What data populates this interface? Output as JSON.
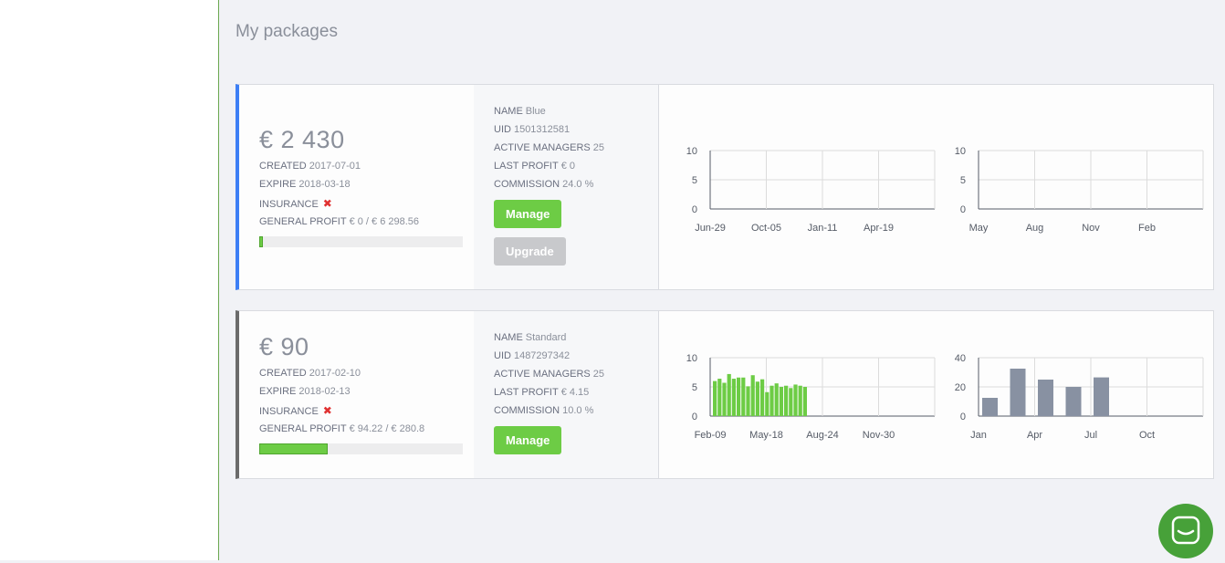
{
  "page": {
    "title": "My packages"
  },
  "colors": {
    "accent_blue": "#3d7ff5",
    "accent_gray": "#6b6b6b",
    "green": "#6dcc45",
    "slate": "#8891a2",
    "danger": "#e03131"
  },
  "packages": [
    {
      "amount": "€ 2 430",
      "created_label": "CREATED",
      "created": "2017-07-01",
      "expire_label": "EXPIRE",
      "expire": "2018-03-18",
      "insurance_label": "INSURANCE",
      "insurance_icon": "cross-icon",
      "profit_label": "GENERAL PROFIT",
      "profit": "€ 0 / € 6 298.56",
      "progress_fraction": 0.005,
      "name_label": "NAME",
      "name": "Blue",
      "uid_label": "UID",
      "uid": "1501312581",
      "managers_label": "ACTIVE MANAGERS",
      "managers": "25",
      "last_profit_label": "LAST PROFIT",
      "last_profit": "€ 0",
      "commission_label": "COMMISSION",
      "commission": "24.0 %",
      "manage_label": "Manage",
      "upgrade_label": "Upgrade"
    },
    {
      "amount": "€ 90",
      "created_label": "CREATED",
      "created": "2017-02-10",
      "expire_label": "EXPIRE",
      "expire": "2018-02-13",
      "insurance_label": "INSURANCE",
      "insurance_icon": "cross-icon",
      "profit_label": "GENERAL PROFIT",
      "profit": "€ 94.22 / € 280.8",
      "progress_fraction": 0.335,
      "name_label": "NAME",
      "name": "Standard",
      "uid_label": "UID",
      "uid": "1487297342",
      "managers_label": "ACTIVE MANAGERS",
      "managers": "25",
      "last_profit_label": "LAST PROFIT",
      "last_profit": "€ 4.15",
      "commission_label": "COMMISSION",
      "commission": "10.0 %",
      "manage_label": "Manage"
    }
  ],
  "chart_data": [
    {
      "type": "bar",
      "x_ticks": [
        "Jun-29",
        "Oct-05",
        "Jan-11",
        "Apr-19"
      ],
      "y_ticks": [
        "0",
        "5",
        "10"
      ],
      "ylim": [
        0,
        10
      ],
      "values": [],
      "grid": true
    },
    {
      "type": "bar",
      "x_ticks": [
        "May",
        "Aug",
        "Nov",
        "Feb"
      ],
      "y_ticks": [
        "0",
        "5",
        "10"
      ],
      "ylim": [
        0,
        10
      ],
      "values": [],
      "grid": true
    },
    {
      "type": "bar",
      "x_ticks": [
        "Feb-09",
        "May-18",
        "Aug-24",
        "Nov-30"
      ],
      "y_ticks": [
        "0",
        "5",
        "10"
      ],
      "ylim": [
        0,
        10
      ],
      "values": [
        6.0,
        6.4,
        5.7,
        7.2,
        6.4,
        6.6,
        6.6,
        5.1,
        7.0,
        5.9,
        6.3,
        4.1,
        5.2,
        5.6,
        5.0,
        5.2,
        4.8,
        5.4,
        5.2,
        5.0
      ],
      "bar_color": "#6dcc45",
      "grid": true
    },
    {
      "type": "bar",
      "x_ticks": [
        "Jan",
        "Apr",
        "Jul",
        "Oct"
      ],
      "y_ticks": [
        "0",
        "20",
        "40"
      ],
      "ylim": [
        0,
        40
      ],
      "values": [
        12.5,
        32.5,
        25.0,
        20.0,
        26.5
      ],
      "bar_color": "#8891a2",
      "grid": true
    }
  ],
  "support": {
    "icon": "chat-bubble-icon"
  }
}
